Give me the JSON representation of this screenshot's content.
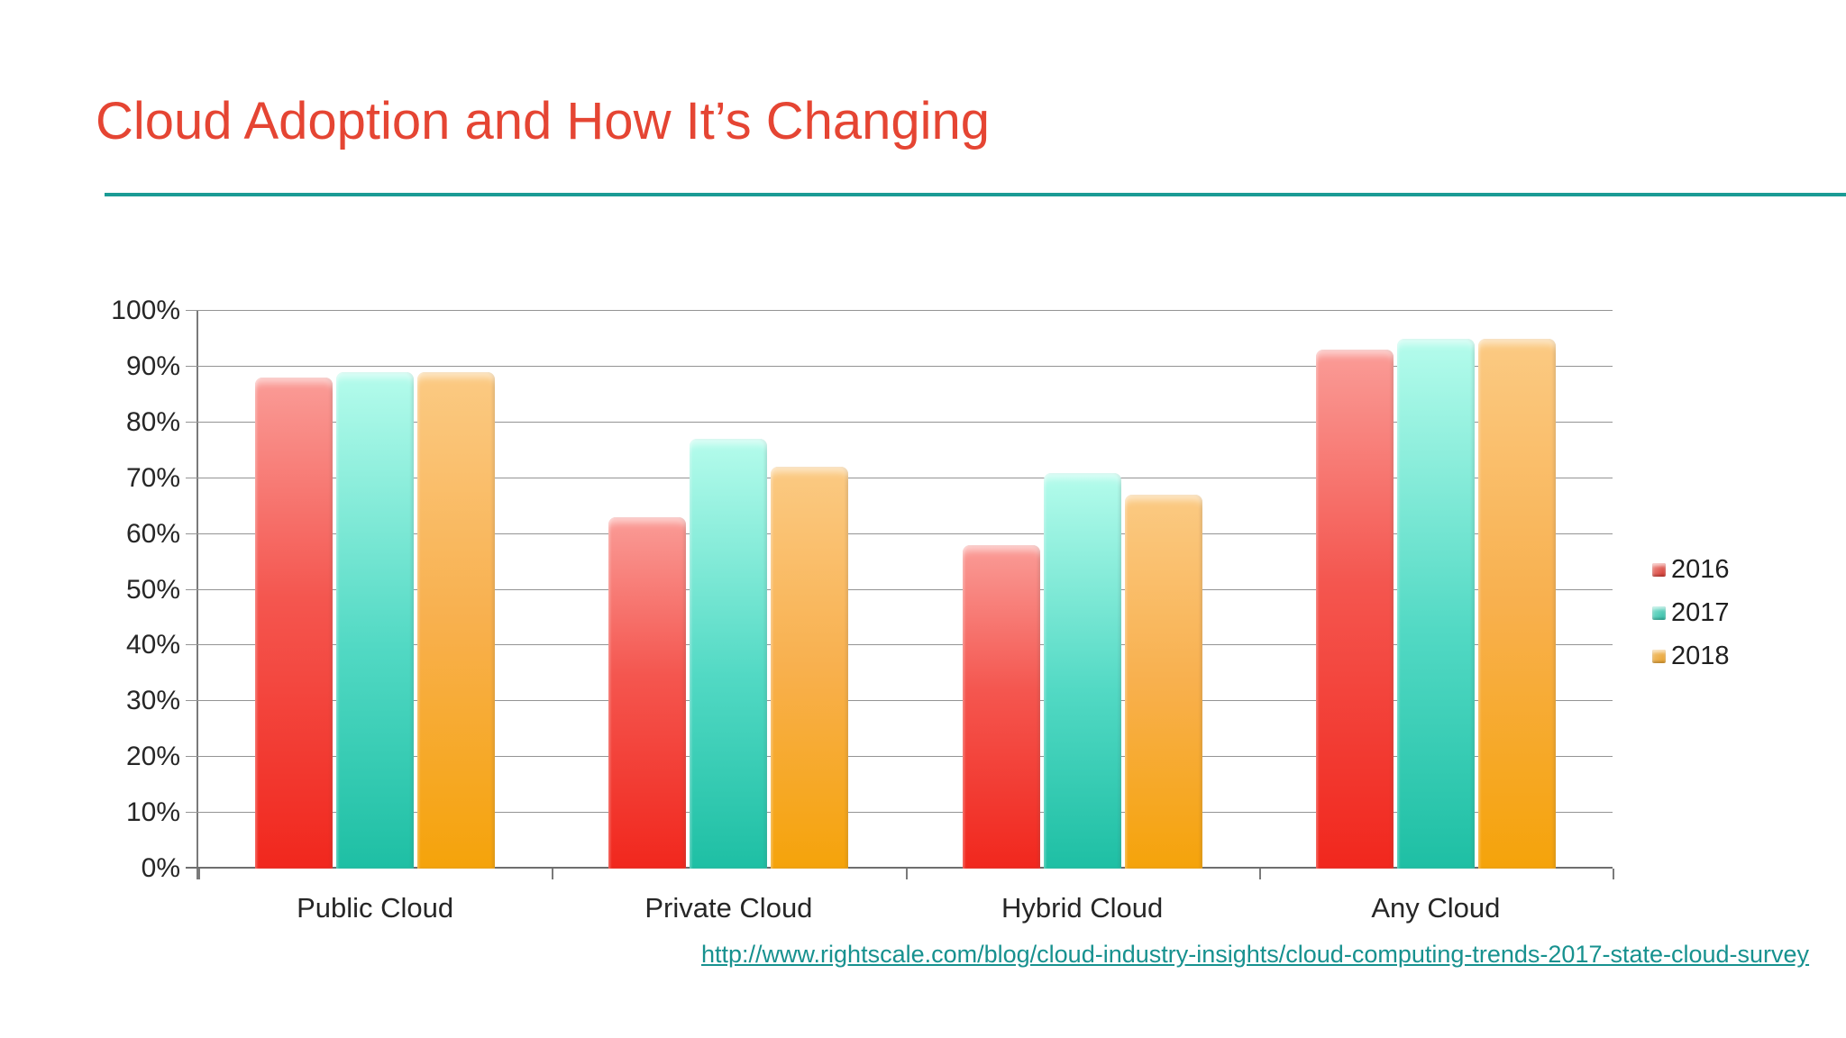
{
  "slide": {
    "title": "Cloud Adoption and How It’s Changing",
    "source_link": "http://www.rightscale.com/blog/cloud-industry-insights/cloud-computing-trends-2017-state-cloud-survey"
  },
  "colors": {
    "title_red": "#E54533",
    "rule_teal": "#1A9B95",
    "link_teal": "#17918F",
    "series_2016": "#F1271D",
    "series_2017": "#1EBFA4",
    "series_2018": "#F5A30A",
    "gridline": "#949494",
    "text": "#262626"
  },
  "chart_data": {
    "type": "bar",
    "categories": [
      "Public Cloud",
      "Private Cloud",
      "Hybrid Cloud",
      "Any Cloud"
    ],
    "series": [
      {
        "name": "2016",
        "values": [
          88,
          63,
          58,
          93
        ]
      },
      {
        "name": "2017",
        "values": [
          89,
          77,
          71,
          95
        ]
      },
      {
        "name": "2018",
        "values": [
          89,
          72,
          67,
          95
        ]
      }
    ],
    "title": "",
    "xlabel": "",
    "ylabel": "",
    "ylim": [
      0,
      100
    ],
    "ytick_step": 10,
    "ytick_labels": [
      "0%",
      "10%",
      "20%",
      "30%",
      "40%",
      "50%",
      "60%",
      "70%",
      "80%",
      "90%",
      "100%"
    ],
    "grid": true,
    "legend_position": "right"
  }
}
